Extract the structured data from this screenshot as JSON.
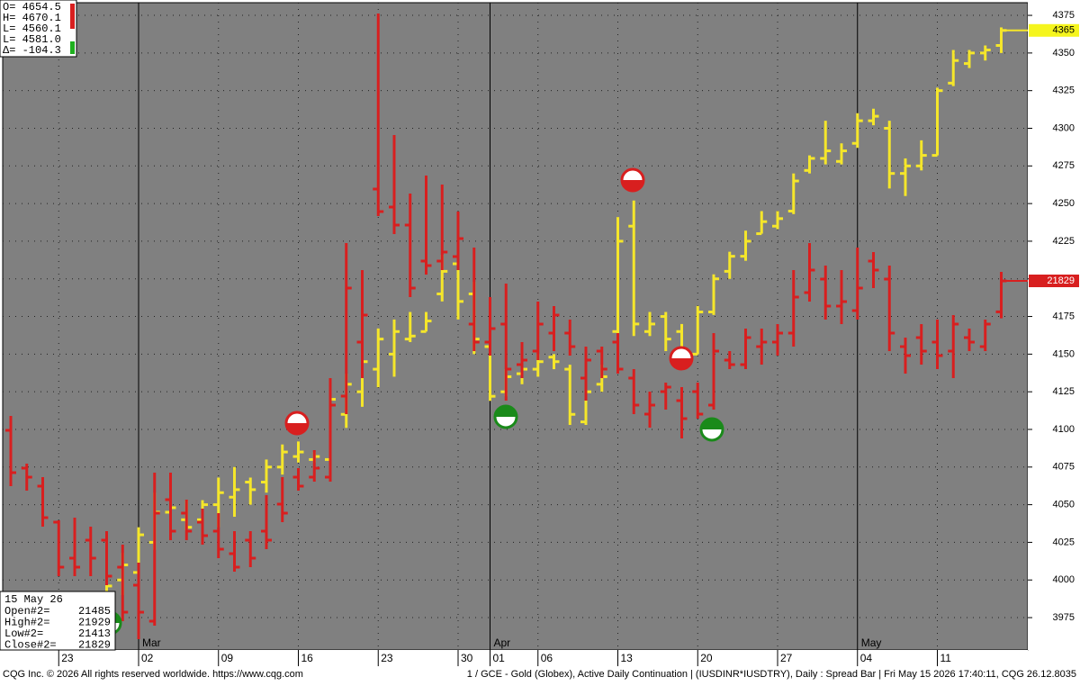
{
  "chart_data": {
    "type": "ohlc",
    "categories": [
      null,
      null,
      null,
      "23",
      null,
      null,
      null,
      null,
      "02",
      null,
      null,
      null,
      null,
      "09",
      null,
      null,
      null,
      null,
      "16",
      null,
      null,
      null,
      null,
      "23",
      null,
      null,
      null,
      null,
      "30",
      null,
      "01",
      null,
      null,
      "06",
      null,
      null,
      null,
      null,
      "13",
      null,
      null,
      null,
      null,
      "20",
      null,
      null,
      null,
      null,
      "27",
      null,
      null,
      null,
      null,
      "04",
      null,
      null,
      null,
      null,
      "11",
      null,
      null,
      null,
      null
    ],
    "months": [
      null,
      null,
      null,
      null,
      null,
      null,
      null,
      null,
      "Mar",
      null,
      null,
      null,
      null,
      null,
      null,
      null,
      null,
      null,
      null,
      null,
      null,
      null,
      null,
      null,
      null,
      null,
      null,
      null,
      null,
      null,
      "Apr",
      null,
      null,
      null,
      null,
      null,
      null,
      null,
      null,
      null,
      null,
      null,
      null,
      null,
      null,
      null,
      null,
      null,
      null,
      null,
      null,
      null,
      null,
      "May",
      null,
      null,
      null,
      null,
      null,
      null,
      null,
      null,
      null
    ],
    "ylim": [
      3953.5,
      4385.2
    ],
    "yticks": [
      3975,
      4000,
      4025,
      4050,
      4075,
      4100,
      4125,
      4150,
      4175,
      4200,
      4225,
      4250,
      4275,
      4300,
      4325,
      4350,
      4375
    ],
    "y2lim": [
      17729,
      24949
    ],
    "grid": true,
    "series": [
      {
        "color": "#f5e62a",
        "axis": "y",
        "open": [
          null,
          null,
          null,
          null,
          null,
          null,
          3990,
          4000,
          4005,
          4025,
          4045,
          4040,
          4040,
          4050,
          4055,
          4065,
          4065,
          4075,
          4082,
          4080,
          4080,
          4110,
          4125,
          4140,
          4150,
          4160,
          4165,
          4190,
          4210,
          4190,
          4155,
          4125,
          4137,
          4140,
          4148,
          4140,
          4105,
          4130,
          4165,
          4235,
          4165,
          4175,
          4165,
          4150,
          4178,
          4205,
          4215,
          4230,
          4235,
          4245,
          4272,
          4280,
          4278,
          4290,
          4305,
          4300,
          4270,
          4275,
          4282,
          4330,
          4343,
          4350,
          4355
        ],
        "high": [
          null,
          null,
          null,
          null,
          null,
          null,
          3998,
          4018,
          4035,
          4058,
          4062,
          4053,
          4053,
          4068,
          4075,
          4068,
          4080,
          4090,
          4092,
          4085,
          4122,
          4137,
          4158,
          4167,
          4173,
          4178,
          4178,
          4216,
          4212,
          4198,
          4158,
          4140,
          4143,
          4150,
          4150,
          4143,
          4155,
          4143,
          4241,
          4252,
          4178,
          4178,
          4170,
          4182,
          4203,
          4218,
          4232,
          4245,
          4245,
          4270,
          4282,
          4305,
          4290,
          4310,
          4313,
          4305,
          4280,
          4292,
          4327,
          4352,
          4352,
          4355,
          4367
        ],
        "low": [
          null,
          null,
          null,
          null,
          null,
          null,
          3988,
          3990,
          3997,
          4020,
          4038,
          4033,
          4037,
          4035,
          4042,
          4050,
          4058,
          4070,
          4078,
          4078,
          4078,
          4101,
          4115,
          4128,
          4135,
          4158,
          4165,
          4185,
          4173,
          4150,
          4119,
          4122,
          4130,
          4135,
          4140,
          4103,
          4103,
          4125,
          4164,
          4162,
          4162,
          4152,
          4147,
          4150,
          4176,
          4200,
          4212,
          4230,
          4233,
          4243,
          4270,
          4276,
          4276,
          4287,
          4302,
          4260,
          4255,
          4272,
          4282,
          4328,
          4340,
          4345,
          4350
        ],
        "close": [
          null,
          null,
          null,
          null,
          null,
          null,
          3996,
          4010,
          4030,
          4045,
          4048,
          4035,
          4050,
          4058,
          4060,
          4060,
          4075,
          4085,
          4085,
          4082,
          4120,
          4130,
          4145,
          4160,
          4165,
          4162,
          4172,
          4205,
          4185,
          4160,
          4122,
          4135,
          4140,
          4145,
          4145,
          4110,
          4125,
          4135,
          4225,
          4170,
          4170,
          4160,
          4150,
          4178,
          4200,
          4215,
          4225,
          4238,
          4240,
          4265,
          4280,
          4285,
          4285,
          4305,
          4308,
          4270,
          4275,
          4282,
          4325,
          4345,
          4350,
          4352,
          4365
        ],
        "label_bg": "#f5f51e"
      },
      {
        "color": "#d81f1f",
        "axis": "y2",
        "open": [
          20169,
          19749,
          19549,
          19149,
          18749,
          18949,
          18949,
          18649,
          18449,
          18049,
          19399,
          19249,
          19149,
          19049,
          18799,
          18949,
          19049,
          19349,
          19649,
          19649,
          19649,
          20549,
          21149,
          22849,
          22649,
          22449,
          22049,
          22049,
          22099,
          21349,
          21149,
          21349,
          20899,
          21049,
          21249,
          21249,
          20749,
          21049,
          21149,
          20749,
          20349,
          20599,
          20499,
          20599,
          20449,
          20949,
          20899,
          21099,
          21149,
          21249,
          21699,
          21849,
          21549,
          21499,
          22049,
          21849,
          21099,
          21199,
          21149,
          21049,
          21199,
          21099,
          21485
        ],
        "high": [
          20329,
          19799,
          19649,
          19169,
          19199,
          19099,
          19049,
          18899,
          18699,
          19699,
          19699,
          19399,
          19299,
          19249,
          19049,
          19049,
          19449,
          19649,
          19749,
          19949,
          20749,
          22249,
          21949,
          24799,
          23449,
          22799,
          22999,
          22899,
          22599,
          22199,
          21649,
          21799,
          21149,
          21599,
          21549,
          21399,
          21099,
          21099,
          21249,
          20849,
          20599,
          20699,
          20649,
          20699,
          21249,
          21049,
          21299,
          21299,
          21349,
          21949,
          22249,
          21999,
          21949,
          22199,
          22149,
          21999,
          21199,
          21349,
          21399,
          21449,
          21299,
          21399,
          21929
        ],
        "low": [
          19549,
          19499,
          19099,
          18549,
          18549,
          18549,
          18449,
          18049,
          17849,
          17999,
          18949,
          18949,
          18899,
          18749,
          18599,
          18649,
          18849,
          19149,
          19499,
          19599,
          19599,
          20349,
          20749,
          22549,
          22349,
          21649,
          21899,
          21949,
          21949,
          21049,
          20999,
          20499,
          20749,
          20949,
          21049,
          20999,
          20499,
          20749,
          20799,
          20349,
          20199,
          20399,
          20079,
          20299,
          20399,
          20849,
          20849,
          20899,
          20999,
          21099,
          21599,
          21399,
          21349,
          21399,
          21749,
          21049,
          20799,
          20899,
          20849,
          20749,
          21049,
          21049,
          21413
        ],
        "close": [
          19699,
          19649,
          19199,
          18649,
          18649,
          18749,
          18549,
          18149,
          18149,
          19249,
          19049,
          19049,
          18999,
          18849,
          18649,
          18749,
          18949,
          19249,
          19549,
          19749,
          20449,
          21749,
          21449,
          22599,
          22449,
          21749,
          21999,
          22149,
          22299,
          21149,
          21299,
          20849,
          20949,
          21349,
          21449,
          21099,
          20949,
          20849,
          20849,
          20449,
          20449,
          20649,
          20299,
          20349,
          21049,
          20899,
          21199,
          21149,
          21249,
          21649,
          21949,
          21549,
          21599,
          21749,
          21949,
          21249,
          20999,
          21049,
          20999,
          21349,
          21149,
          21349,
          21829
        ],
        "label_bg": "#d81f1f"
      }
    ]
  },
  "info_top": [
    "O= 4654.5",
    "H= 4670.1",
    "L= 4560.1",
    "L= 4581.0",
    "Δ= -104.3"
  ],
  "info_bottom": {
    "date": "15 May 26",
    "rows": [
      [
        "Open#2=",
        "21485"
      ],
      [
        "High#2=",
        "21929"
      ],
      [
        "Low#2=",
        "21413"
      ],
      [
        "Close#2=",
        "21829"
      ]
    ]
  },
  "footer": {
    "left": "CQG Inc. © 2026 All rights reserved worldwide. https://www.cqg.com",
    "right": "1 / GCE - Gold (Globex), Active Daily Continuation    |    (IUSDINR*IUSDTRY), Daily : Spread Bar | Fri May 15 2026 17:40:11, CQG 26.12.8035"
  }
}
